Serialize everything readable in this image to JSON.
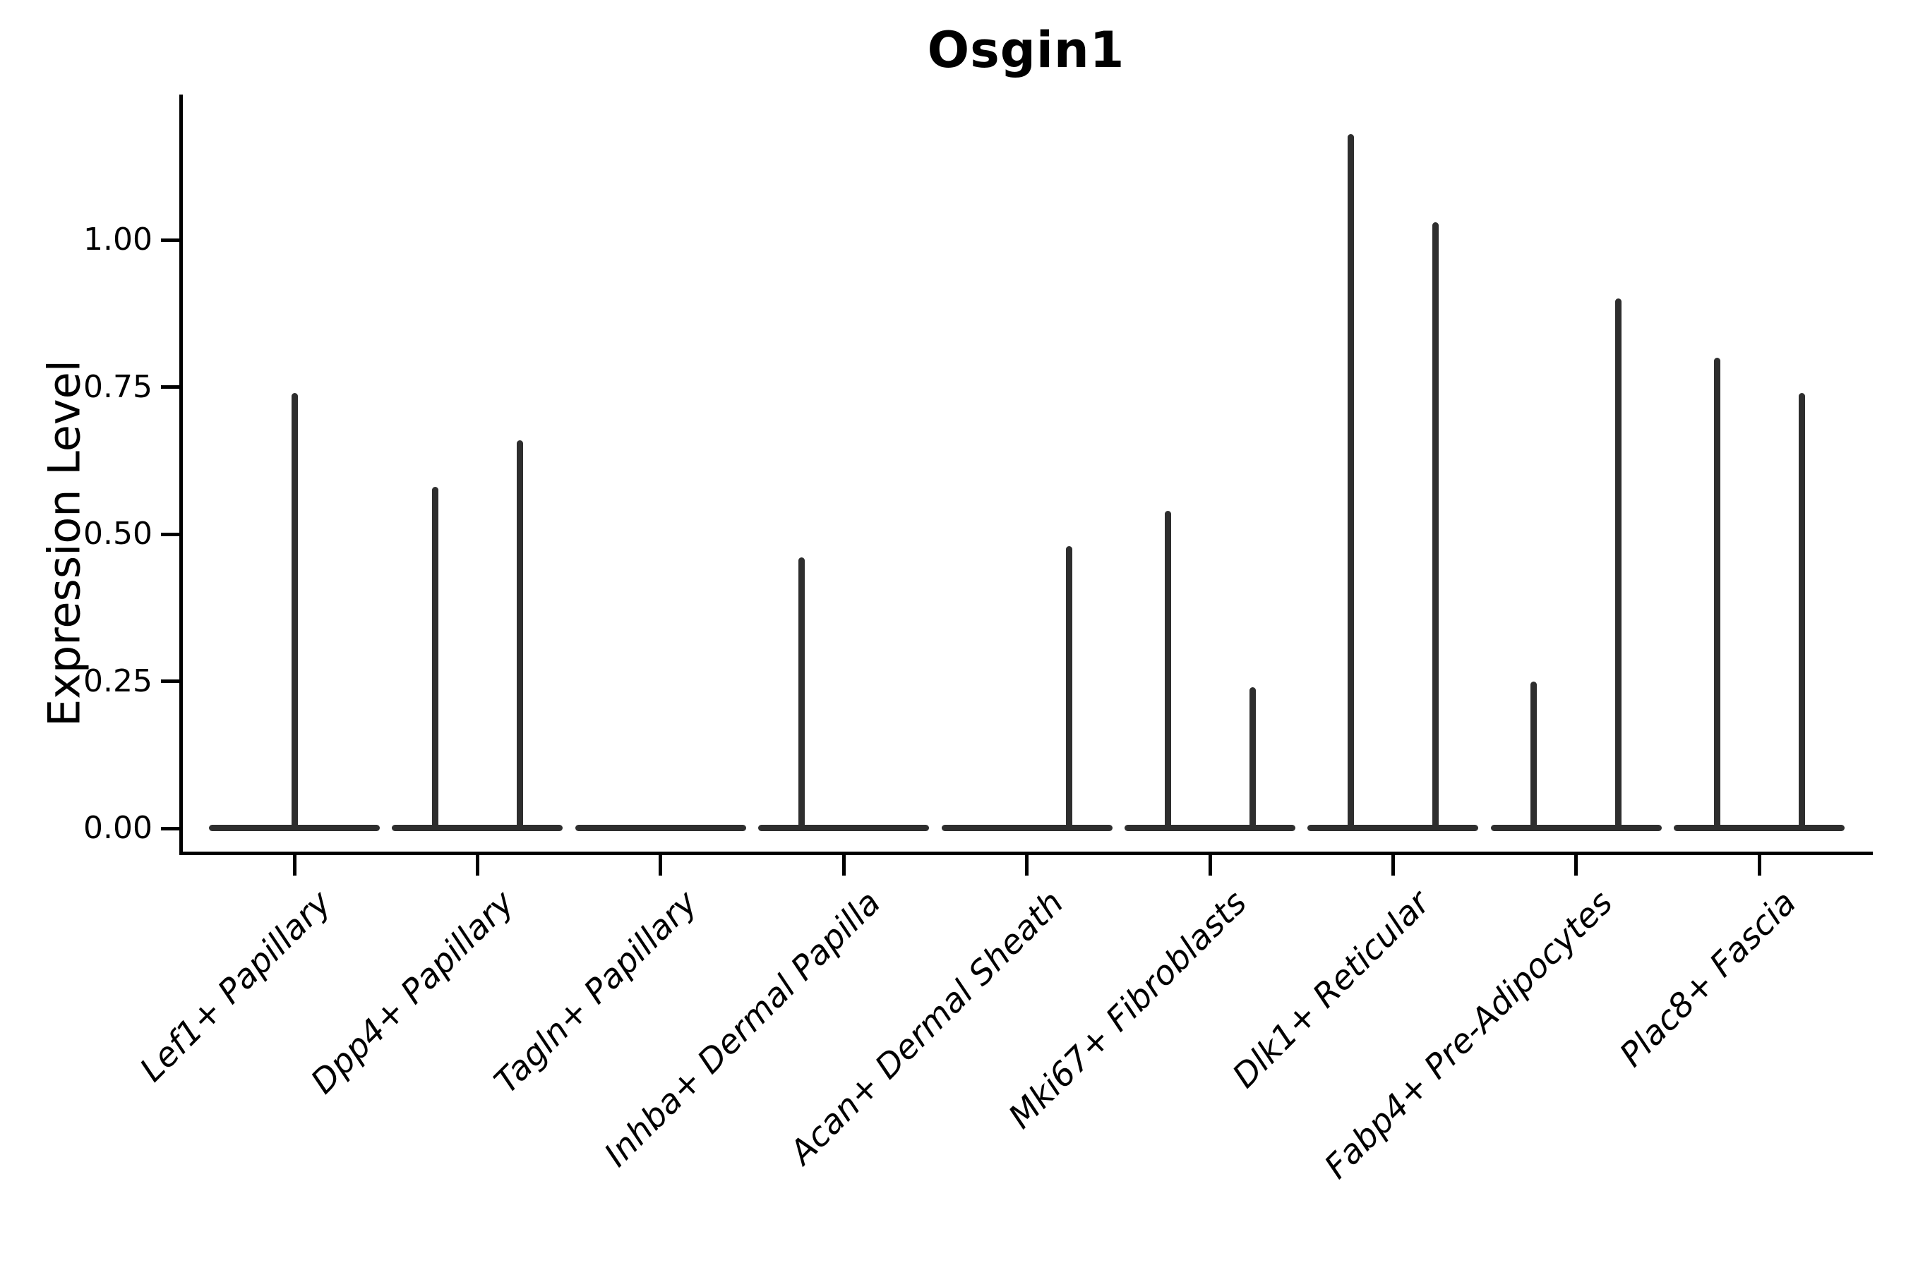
{
  "chart_data": {
    "type": "violin",
    "title": "Osgin1",
    "xlabel": "",
    "ylabel": "Expression Level",
    "ylim": [
      -0.05,
      1.25
    ],
    "yticks": [
      0,
      0.25,
      0.5,
      0.75,
      1.0
    ],
    "ytick_labels": [
      "0.00",
      "0.25",
      "0.50",
      "0.75",
      "1.00"
    ],
    "grid": false,
    "legend": "none",
    "baseline_value": 0,
    "colors": {
      "violin": "#2e2e2e",
      "axis": "#000000",
      "text": "#000000",
      "background": "#ffffff"
    },
    "categories": [
      "Lef1+ Papillary",
      "Dpp4+ Papillary",
      "Tagln+ Papillary",
      "Inhba+ Dermal Papilla",
      "Acan+ Dermal Sheath",
      "Mki67+ Fibroblasts",
      "Dlk1+ Reticular",
      "Fabp4+ Pre-Adipocytes",
      "Plac8+ Fascia"
    ],
    "violins": [
      {
        "category": "Lef1+ Papillary",
        "spikes": [
          {
            "position": "center",
            "max": 0.74
          }
        ]
      },
      {
        "category": "Dpp4+ Papillary",
        "spikes": [
          {
            "position": "left",
            "max": 0.58
          },
          {
            "position": "right",
            "max": 0.66
          }
        ]
      },
      {
        "category": "Tagln+ Papillary",
        "spikes": []
      },
      {
        "category": "Inhba+ Dermal Papilla",
        "spikes": [
          {
            "position": "left",
            "max": 0.46
          }
        ]
      },
      {
        "category": "Acan+ Dermal Sheath",
        "spikes": [
          {
            "position": "right",
            "max": 0.48
          }
        ]
      },
      {
        "category": "Mki67+ Fibroblasts",
        "spikes": [
          {
            "position": "left",
            "max": 0.54
          },
          {
            "position": "right",
            "max": 0.24
          }
        ]
      },
      {
        "category": "Dlk1+ Reticular",
        "spikes": [
          {
            "position": "left",
            "max": 1.18
          },
          {
            "position": "right",
            "max": 1.03
          }
        ]
      },
      {
        "category": "Fabp4+ Pre-Adipocytes",
        "spikes": [
          {
            "position": "left",
            "max": 0.25
          },
          {
            "position": "right",
            "max": 0.9
          }
        ]
      },
      {
        "category": "Plac8+ Fascia",
        "spikes": [
          {
            "position": "left",
            "max": 0.8
          },
          {
            "position": "right",
            "max": 0.74
          }
        ]
      }
    ]
  }
}
